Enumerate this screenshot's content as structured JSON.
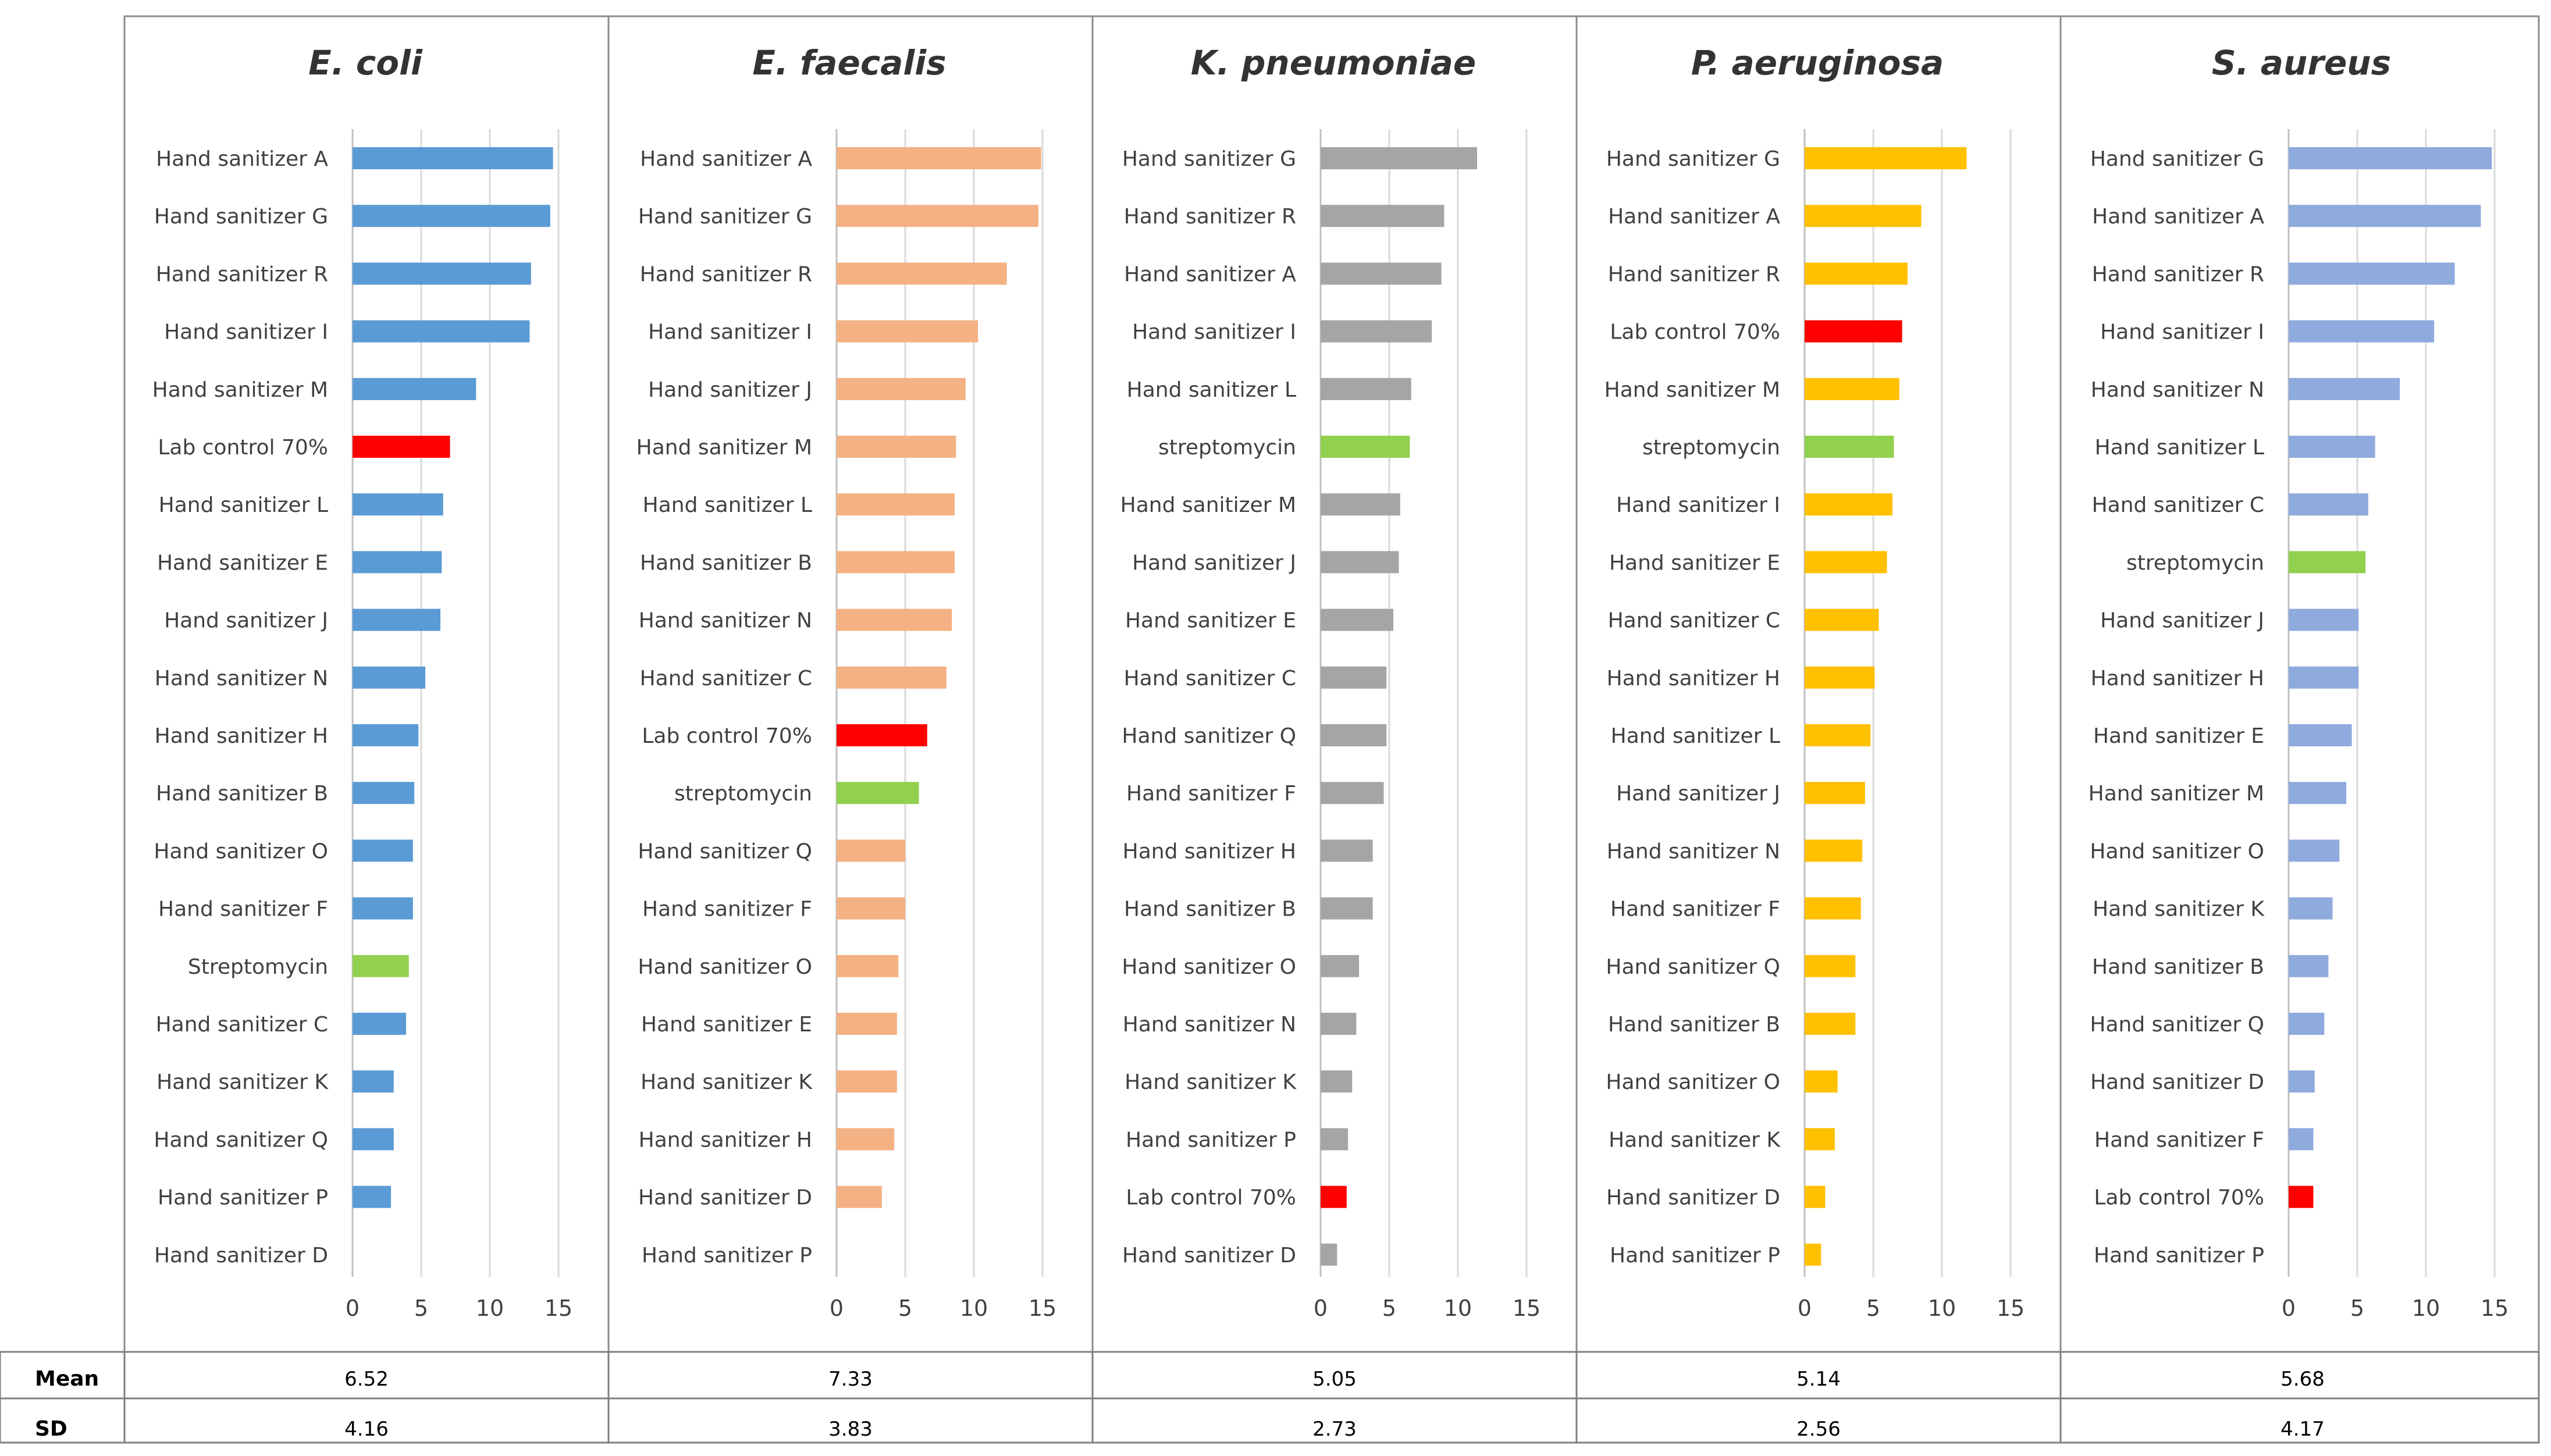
{
  "chart_data": [
    {
      "type": "bar",
      "orientation": "horizontal",
      "title": "E. coli",
      "color": "#5b9bd5",
      "xlim": [
        0,
        15
      ],
      "xticks": [
        0,
        5,
        10,
        15
      ],
      "categories": [
        "Hand sanitizer A",
        "Hand sanitizer G",
        "Hand sanitizer R",
        "Hand sanitizer I",
        "Hand sanitizer M",
        "Lab control 70%",
        "Hand sanitizer L",
        "Hand sanitizer E",
        "Hand sanitizer J",
        "Hand sanitizer N",
        "Hand sanitizer H",
        "Hand sanitizer B",
        "Hand sanitizer O",
        "Hand sanitizer F",
        "Streptomycin",
        "Hand sanitizer C",
        "Hand sanitizer K",
        "Hand sanitizer Q",
        "Hand sanitizer P",
        "Hand sanitizer D"
      ],
      "values": [
        14.6,
        14.4,
        13.0,
        12.9,
        9.0,
        7.1,
        6.6,
        6.5,
        6.4,
        5.3,
        4.8,
        4.5,
        4.4,
        4.4,
        4.1,
        3.9,
        3.0,
        3.0,
        2.8,
        0
      ],
      "highlight": {
        "Lab control 70%": "#ff0000",
        "Streptomycin": "#92d050"
      },
      "mean": "6.52",
      "sd": "4.16"
    },
    {
      "type": "bar",
      "orientation": "horizontal",
      "title": "E. faecalis",
      "color": "#f4b183",
      "xlim": [
        0,
        15
      ],
      "xticks": [
        0,
        5,
        10,
        15
      ],
      "categories": [
        "Hand sanitizer A",
        "Hand sanitizer G",
        "Hand sanitizer R",
        "Hand sanitizer I",
        "Hand sanitizer J",
        "Hand sanitizer M",
        "Hand sanitizer L",
        "Hand sanitizer B",
        "Hand sanitizer N",
        "Hand sanitizer C",
        "Lab control 70%",
        "streptomycin",
        "Hand sanitizer Q",
        "Hand sanitizer F",
        "Hand sanitizer O",
        "Hand sanitizer E",
        "Hand sanitizer K",
        "Hand sanitizer H",
        "Hand sanitizer D",
        "Hand sanitizer P"
      ],
      "values": [
        14.9,
        14.7,
        12.4,
        10.3,
        9.4,
        8.7,
        8.6,
        8.6,
        8.4,
        8.0,
        6.6,
        6.0,
        5.0,
        5.0,
        4.5,
        4.4,
        4.4,
        4.2,
        3.3,
        0
      ],
      "highlight": {
        "Lab control 70%": "#ff0000",
        "streptomycin": "#92d050"
      },
      "mean": "7.33",
      "sd": "3.83"
    },
    {
      "type": "bar",
      "orientation": "horizontal",
      "title": "K. pneumoniae",
      "color": "#a5a5a5",
      "xlim": [
        0,
        15
      ],
      "xticks": [
        0,
        5,
        10,
        15
      ],
      "categories": [
        "Hand sanitizer G",
        "Hand sanitizer R",
        "Hand sanitizer A",
        "Hand sanitizer I",
        "Hand sanitizer L",
        "streptomycin",
        "Hand sanitizer M",
        "Hand sanitizer J",
        "Hand sanitizer E",
        "Hand sanitizer C",
        "Hand sanitizer Q",
        "Hand sanitizer F",
        "Hand sanitizer H",
        "Hand sanitizer B",
        "Hand sanitizer O",
        "Hand sanitizer N",
        "Hand sanitizer K",
        "Hand sanitizer P",
        "Lab control 70%",
        "Hand sanitizer D"
      ],
      "values": [
        11.4,
        9.0,
        8.8,
        8.1,
        6.6,
        6.5,
        5.8,
        5.7,
        5.3,
        4.8,
        4.8,
        4.6,
        3.8,
        3.8,
        2.8,
        2.6,
        2.3,
        2.0,
        1.9,
        1.2
      ],
      "highlight": {
        "Lab control 70%": "#ff0000",
        "streptomycin": "#92d050"
      },
      "mean": "5.05",
      "sd": "2.73"
    },
    {
      "type": "bar",
      "orientation": "horizontal",
      "title": "P. aeruginosa",
      "color": "#ffc000",
      "xlim": [
        0,
        15
      ],
      "xticks": [
        0,
        5,
        10,
        15
      ],
      "categories": [
        "Hand sanitizer G",
        "Hand sanitizer A",
        "Hand sanitizer R",
        "Lab control 70%",
        "Hand sanitizer M",
        "streptomycin",
        "Hand sanitizer I",
        "Hand sanitizer E",
        "Hand sanitizer C",
        "Hand sanitizer H",
        "Hand sanitizer L",
        "Hand sanitizer J",
        "Hand sanitizer N",
        "Hand sanitizer F",
        "Hand sanitizer Q",
        "Hand sanitizer B",
        "Hand sanitizer O",
        "Hand sanitizer K",
        "Hand sanitizer D",
        "Hand sanitizer P"
      ],
      "values": [
        11.8,
        8.5,
        7.5,
        7.1,
        6.9,
        6.5,
        6.4,
        6.0,
        5.4,
        5.1,
        4.8,
        4.4,
        4.2,
        4.1,
        3.7,
        3.7,
        2.4,
        2.2,
        1.5,
        1.2
      ],
      "highlight": {
        "Lab control 70%": "#ff0000",
        "streptomycin": "#92d050"
      },
      "mean": "5.14",
      "sd": "2.56"
    },
    {
      "type": "bar",
      "orientation": "horizontal",
      "title": "S. aureus",
      "color": "#8faadc",
      "xlim": [
        0,
        15
      ],
      "xticks": [
        0,
        5,
        10,
        15
      ],
      "categories": [
        "Hand sanitizer G",
        "Hand sanitizer A",
        "Hand sanitizer R",
        "Hand sanitizer I",
        "Hand sanitizer N",
        "Hand sanitizer L",
        "Hand sanitizer C",
        "streptomycin",
        "Hand sanitizer J",
        "Hand sanitizer H",
        "Hand sanitizer E",
        "Hand sanitizer M",
        "Hand sanitizer O",
        "Hand sanitizer K",
        "Hand sanitizer B",
        "Hand sanitizer Q",
        "Hand sanitizer D",
        "Hand sanitizer F",
        "Lab control 70%",
        "Hand sanitizer P"
      ],
      "values": [
        14.8,
        14.0,
        12.1,
        10.6,
        8.1,
        6.3,
        5.8,
        5.6,
        5.1,
        5.1,
        4.6,
        4.2,
        3.7,
        3.2,
        2.9,
        2.6,
        1.9,
        1.8,
        1.8,
        0
      ],
      "highlight": {
        "Lab control 70%": "#ff0000",
        "streptomycin": "#92d050"
      },
      "mean": "5.68",
      "sd": "4.17"
    }
  ],
  "stats_table": {
    "mean_label": "Mean",
    "sd_label": "SD"
  }
}
